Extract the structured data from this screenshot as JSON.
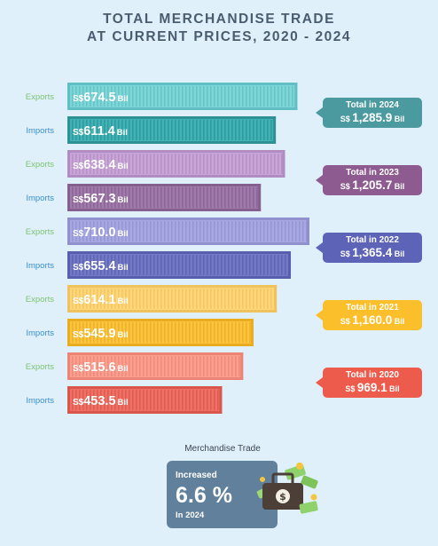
{
  "title_line1": "TOTAL MERCHANDISE TRADE",
  "title_line2": "AT CURRENT PRICES, 2020 - 2024",
  "chart_data": {
    "type": "bar",
    "orientation": "horizontal",
    "unit_prefix": "S$",
    "unit_suffix": "Bil",
    "rows": [
      {
        "year": "2024",
        "label": "Exports",
        "value": 674.5,
        "display": "674.5",
        "color": "#7fd6d8",
        "stripe": "#5fbfc2"
      },
      {
        "year": "2024",
        "label": "Imports",
        "value": 611.4,
        "display": "611.4",
        "color": "#3fb3b5",
        "stripe": "#2e9294"
      },
      {
        "year": "2023",
        "label": "Exports",
        "value": 638.4,
        "display": "638.4",
        "color": "#c9a5d8",
        "stripe": "#b18cc2"
      },
      {
        "year": "2023",
        "label": "Imports",
        "value": 567.3,
        "display": "567.3",
        "color": "#a07aaa",
        "stripe": "#84608f"
      },
      {
        "year": "2022",
        "label": "Exports",
        "value": 710.0,
        "display": "710.0",
        "color": "#a8a8e3",
        "stripe": "#9090cf"
      },
      {
        "year": "2022",
        "label": "Imports",
        "value": 655.4,
        "display": "655.4",
        "color": "#7379c6",
        "stripe": "#585fae"
      },
      {
        "year": "2021",
        "label": "Exports",
        "value": 614.1,
        "display": "614.1",
        "color": "#ffd77a",
        "stripe": "#f0c25d"
      },
      {
        "year": "2021",
        "label": "Imports",
        "value": 545.9,
        "display": "545.9",
        "color": "#fdc43f",
        "stripe": "#e9ac20"
      },
      {
        "year": "2020",
        "label": "Exports",
        "value": 515.6,
        "display": "515.6",
        "color": "#fb9f90",
        "stripe": "#ec8374"
      },
      {
        "year": "2020",
        "label": "Imports",
        "value": 453.5,
        "display": "453.5",
        "color": "#f07065",
        "stripe": "#d8564b"
      }
    ],
    "totals": [
      {
        "label": "Total in 2024",
        "prefix": "S$",
        "value": "1,285.9",
        "suffix": "Bil",
        "color": "#4a9aa0"
      },
      {
        "label": "Total in 2023",
        "prefix": "S$",
        "value": "1,205.7",
        "suffix": "Bil",
        "color": "#8e5b91"
      },
      {
        "label": "Total in 2022",
        "prefix": "S$",
        "value": "1,365.4",
        "suffix": "Bil",
        "color": "#5d64b8"
      },
      {
        "label": "Total in 2021",
        "prefix": "S$",
        "value": "1,160.0",
        "suffix": "Bil",
        "color": "#fbbf2b"
      },
      {
        "label": "Total in 2020",
        "prefix": "S$",
        "value": "969.1",
        "suffix": "Bil",
        "color": "#ed5b4c"
      }
    ],
    "label_colors": {
      "Exports": "#7cc46f",
      "Imports": "#3b8ec9"
    }
  },
  "highlight": {
    "heading": "Merchandise Trade",
    "line1": "Increased",
    "value": "6.6 %",
    "line3": "In 2024",
    "icon": "money-briefcase-icon"
  }
}
